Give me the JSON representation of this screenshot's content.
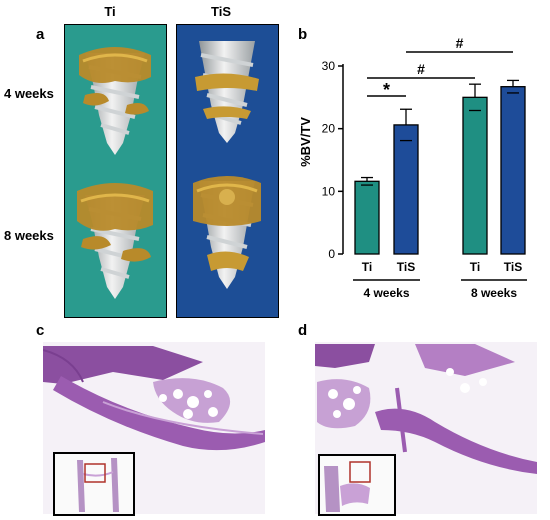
{
  "panels": {
    "a": {
      "label": "a",
      "columns": [
        "Ti",
        "TiS"
      ],
      "rows": [
        "4 weeks",
        "8 weeks"
      ],
      "colors": {
        "Ti_bg": "#2a9b8e",
        "TiS_bg": "#1d4e96"
      }
    },
    "b": {
      "label": "b"
    },
    "c": {
      "label": "c"
    },
    "d": {
      "label": "d"
    }
  },
  "chart_data": {
    "type": "bar",
    "ylabel": "%BV/TV",
    "ylim": [
      0,
      30
    ],
    "yticks": [
      0,
      10,
      20,
      30
    ],
    "groups": [
      {
        "name": "4 weeks",
        "categories": [
          "Ti",
          "TiS"
        ],
        "values": [
          11.6,
          20.6
        ],
        "errors": [
          0.6,
          2.5
        ]
      },
      {
        "name": "8 weeks",
        "categories": [
          "Ti",
          "TiS"
        ],
        "values": [
          25.0,
          26.7
        ],
        "errors": [
          2.1,
          1.0
        ]
      }
    ],
    "colors": {
      "Ti": "#1f8f82",
      "TiS": "#1e4c99"
    },
    "significance": [
      {
        "symbol": "*",
        "from": "4 weeks Ti",
        "to": "4 weeks TiS"
      },
      {
        "symbol": "#",
        "from": "4 weeks Ti",
        "to": "8 weeks Ti"
      },
      {
        "symbol": "#",
        "from": "4 weeks TiS",
        "to": "8 weeks TiS"
      }
    ]
  }
}
